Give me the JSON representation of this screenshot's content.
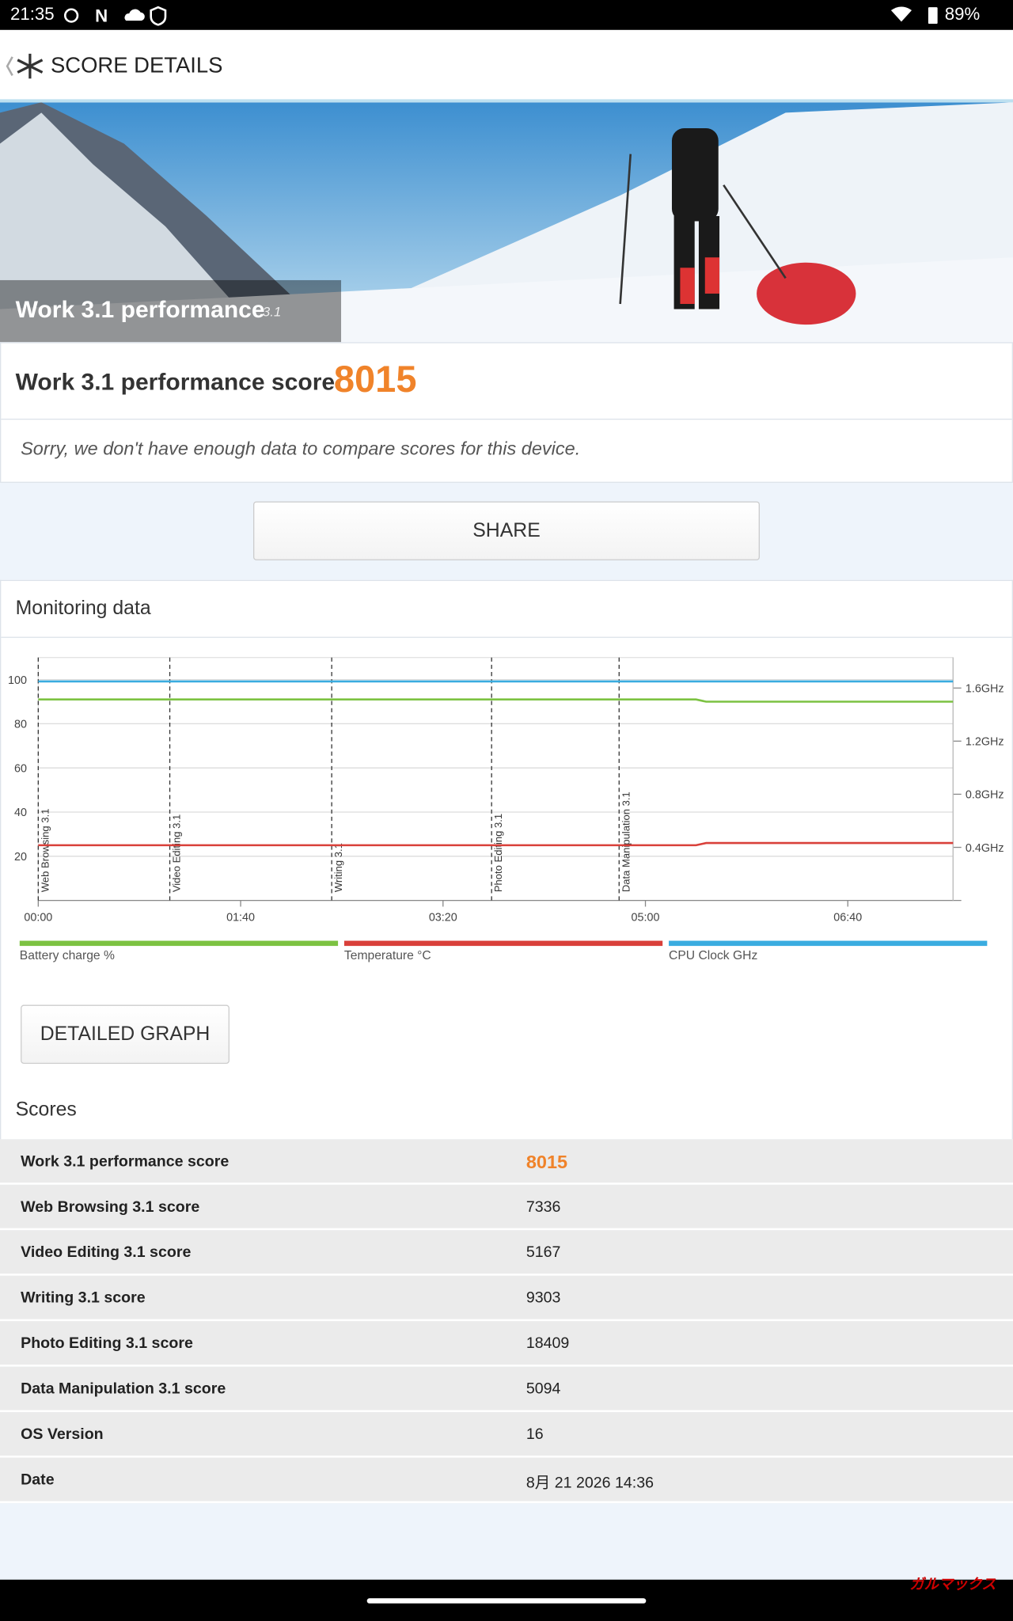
{
  "status_bar": {
    "time": "21:35",
    "battery": "89%"
  },
  "header": {
    "title": "SCORE DETAILS"
  },
  "banner": {
    "title": "Work 3.1 performance",
    "version": "3.1"
  },
  "score": {
    "label": "Work 3.1 performance score",
    "value": "8015",
    "note": "Sorry, we don't have enough data to compare scores for this device."
  },
  "share_button": "SHARE",
  "monitoring": {
    "title": "Monitoring data",
    "detail_button": "DETAILED GRAPH"
  },
  "chart_data": {
    "type": "line",
    "x": [
      0,
      30,
      325,
      330,
      452
    ],
    "xlim": [
      0,
      452
    ],
    "xticks": [
      {
        "value": 0,
        "label": "00:00"
      },
      {
        "value": 100,
        "label": "01:40"
      },
      {
        "value": 200,
        "label": "03:20"
      },
      {
        "value": 300,
        "label": "05:00"
      },
      {
        "value": 400,
        "label": "06:40"
      }
    ],
    "ylim": [
      0,
      110
    ],
    "yticks": [
      20,
      40,
      60,
      80,
      100
    ],
    "y2lim": [
      0,
      1.83
    ],
    "y2ticks": [
      {
        "value": 0.4,
        "label": "0.4GHz"
      },
      {
        "value": 0.8,
        "label": "0.8GHz"
      },
      {
        "value": 1.2,
        "label": "1.2GHz"
      },
      {
        "value": 1.6,
        "label": "1.6GHz"
      }
    ],
    "grid": true,
    "series": [
      {
        "name": "Battery charge %",
        "color": "#7cc242",
        "values": [
          91,
          91,
          91,
          90,
          90
        ]
      },
      {
        "name": "Temperature °C",
        "color": "#d9403a",
        "values": [
          25,
          25,
          25,
          26,
          26
        ]
      },
      {
        "name": "CPU Clock GHz",
        "color": "#3aace0",
        "axis": "y2",
        "values": [
          1.65,
          1.65,
          1.65,
          1.65,
          1.65
        ]
      }
    ],
    "annotations": [
      {
        "x": 0,
        "label": "Web Browsing 3.1"
      },
      {
        "x": 65,
        "label": "Video Editing 3.1"
      },
      {
        "x": 145,
        "label": "Writing 3.1"
      },
      {
        "x": 224,
        "label": "Photo Editing 3.1"
      },
      {
        "x": 287,
        "label": "Data Manipulation 3.1"
      }
    ]
  },
  "scores": {
    "title": "Scores",
    "rows": [
      [
        "Work 3.1 performance score",
        "8015"
      ],
      [
        "Web Browsing 3.1 score",
        "7336"
      ],
      [
        "Video Editing 3.1 score",
        "5167"
      ],
      [
        "Writing 3.1 score",
        "9303"
      ],
      [
        "Photo Editing 3.1 score",
        "18409"
      ],
      [
        "Data Manipulation 3.1 score",
        "5094"
      ],
      [
        "OS Version",
        "16"
      ],
      [
        "Date",
        "8月 21 2026 14:36"
      ]
    ]
  },
  "watermark": "ガルマックス"
}
